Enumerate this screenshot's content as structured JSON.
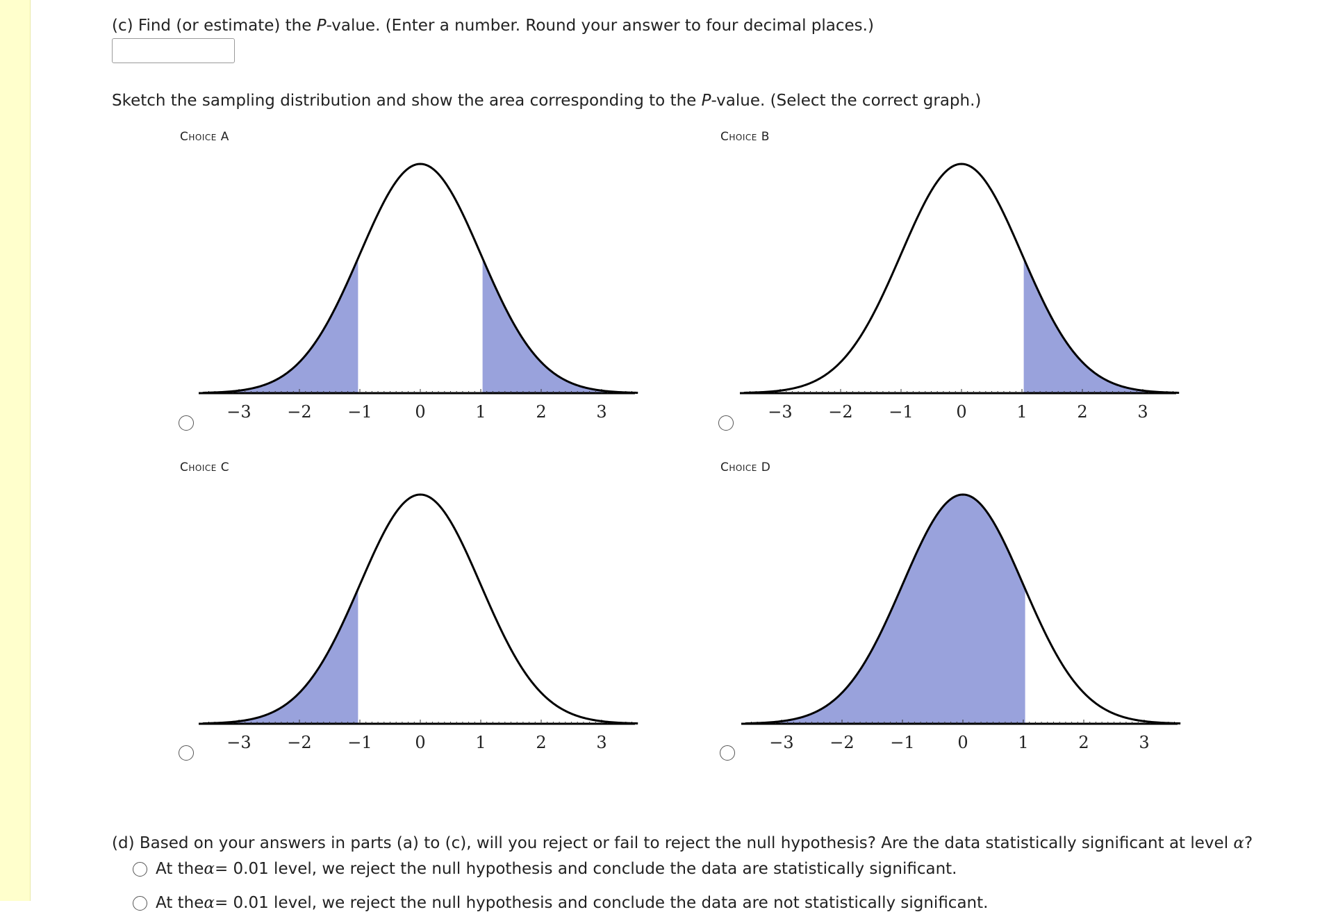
{
  "part_c": {
    "prefix": "(c) Find (or estimate) the ",
    "pvar": "P",
    "suffix": "-value. (Enter a number. Round your answer to four decimal places.)",
    "answer_value": ""
  },
  "sketch": {
    "prefix": "Sketch the sampling distribution and show the area corresponding to the ",
    "pvar": "P",
    "suffix": "-value. (Select the correct graph.)"
  },
  "graphs": [
    {
      "id": "A",
      "label": "Choice A",
      "shade": [
        [
          -4,
          -1.03
        ],
        [
          1.03,
          4
        ]
      ]
    },
    {
      "id": "B",
      "label": "Choice B",
      "shade": [
        [
          1.03,
          4
        ]
      ]
    },
    {
      "id": "C",
      "label": "Choice C",
      "shade": [
        [
          -4,
          -1.03
        ]
      ]
    },
    {
      "id": "D",
      "label": "Choice D",
      "shade": [
        [
          -4,
          1.03
        ]
      ]
    }
  ],
  "axis_ticks": [
    "−3",
    "−2",
    "−1",
    "0",
    "1",
    "2",
    "3"
  ],
  "colors": {
    "shade": "#99a2dc",
    "curve": "#000000",
    "left_strip": "#ffffcc"
  },
  "part_d": {
    "question": "(d) Based on your answers in parts (a) to (c), will you reject or fail to reject the null hypothesis? Are the data statistically significant at level ",
    "alpha": "α",
    "question_end": "?",
    "options": [
      {
        "pre": "At the ",
        "alpha": "α",
        "post": " = 0.01 level, we reject the null hypothesis and conclude the data are statistically significant."
      },
      {
        "pre": "At the ",
        "alpha": "α",
        "post": " = 0.01 level, we reject the null hypothesis and conclude the data are not statistically significant."
      }
    ]
  }
}
